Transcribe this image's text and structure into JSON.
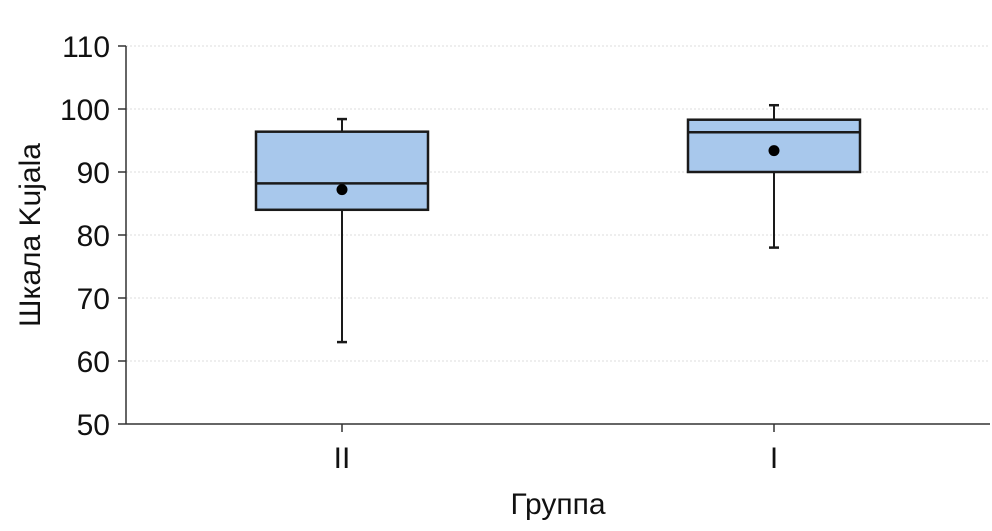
{
  "chart_data": {
    "type": "box",
    "title": "",
    "xlabel": "Группа",
    "ylabel": "Шкала Kujala",
    "ylim": [
      50,
      110
    ],
    "yticks": [
      50,
      60,
      70,
      80,
      90,
      100,
      110
    ],
    "grid": true,
    "categories": [
      "II",
      "I"
    ],
    "boxes": [
      {
        "category": "II",
        "min": 63,
        "q1": 84,
        "median": 88.2,
        "q3": 96.4,
        "max": 98.4,
        "mean": 87.2
      },
      {
        "category": "I",
        "min": 78,
        "q1": 90,
        "median": 96.3,
        "q3": 98.3,
        "max": 100.6,
        "mean": 93.4
      }
    ],
    "colors": {
      "box_fill": "#a8c8ec",
      "box_stroke": "#1a1a1a",
      "grid": "#dcdcdc",
      "mean_marker": "#000000"
    }
  }
}
